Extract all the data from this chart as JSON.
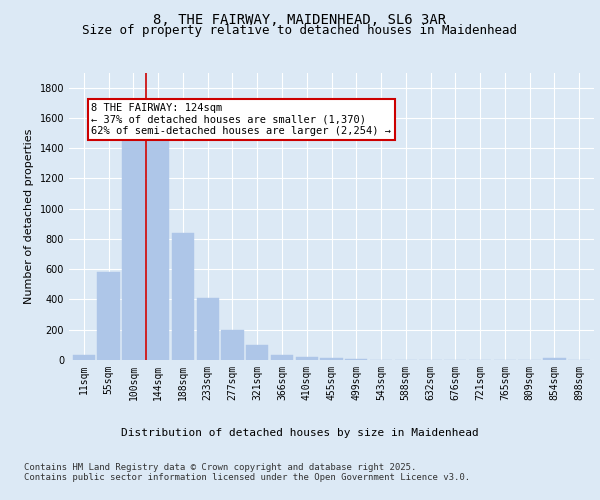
{
  "title_line1": "8, THE FAIRWAY, MAIDENHEAD, SL6 3AR",
  "title_line2": "Size of property relative to detached houses in Maidenhead",
  "xlabel": "Distribution of detached houses by size in Maidenhead",
  "ylabel": "Number of detached properties",
  "categories": [
    "11sqm",
    "55sqm",
    "100sqm",
    "144sqm",
    "188sqm",
    "233sqm",
    "277sqm",
    "321sqm",
    "366sqm",
    "410sqm",
    "455sqm",
    "499sqm",
    "543sqm",
    "588sqm",
    "632sqm",
    "676sqm",
    "721sqm",
    "765sqm",
    "809sqm",
    "854sqm",
    "898sqm"
  ],
  "values": [
    30,
    580,
    1470,
    1470,
    840,
    410,
    200,
    100,
    35,
    20,
    15,
    5,
    0,
    0,
    0,
    0,
    0,
    0,
    0,
    15,
    0
  ],
  "bar_color": "#aec6e8",
  "bar_edgecolor": "#aec6e8",
  "vline_x": 2.5,
  "vline_color": "#cc0000",
  "annotation_text": "8 THE FAIRWAY: 124sqm\n← 37% of detached houses are smaller (1,370)\n62% of semi-detached houses are larger (2,254) →",
  "annotation_box_edgecolor": "#cc0000",
  "annotation_box_facecolor": "#ffffff",
  "ylim": [
    0,
    1900
  ],
  "yticks": [
    0,
    200,
    400,
    600,
    800,
    1000,
    1200,
    1400,
    1600,
    1800
  ],
  "bg_color": "#dce9f5",
  "plot_bg_color": "#dce9f5",
  "footer": "Contains HM Land Registry data © Crown copyright and database right 2025.\nContains public sector information licensed under the Open Government Licence v3.0.",
  "title_fontsize": 10,
  "subtitle_fontsize": 9,
  "axis_label_fontsize": 8,
  "tick_fontsize": 7,
  "footer_fontsize": 6.5,
  "annotation_fontsize": 7.5
}
